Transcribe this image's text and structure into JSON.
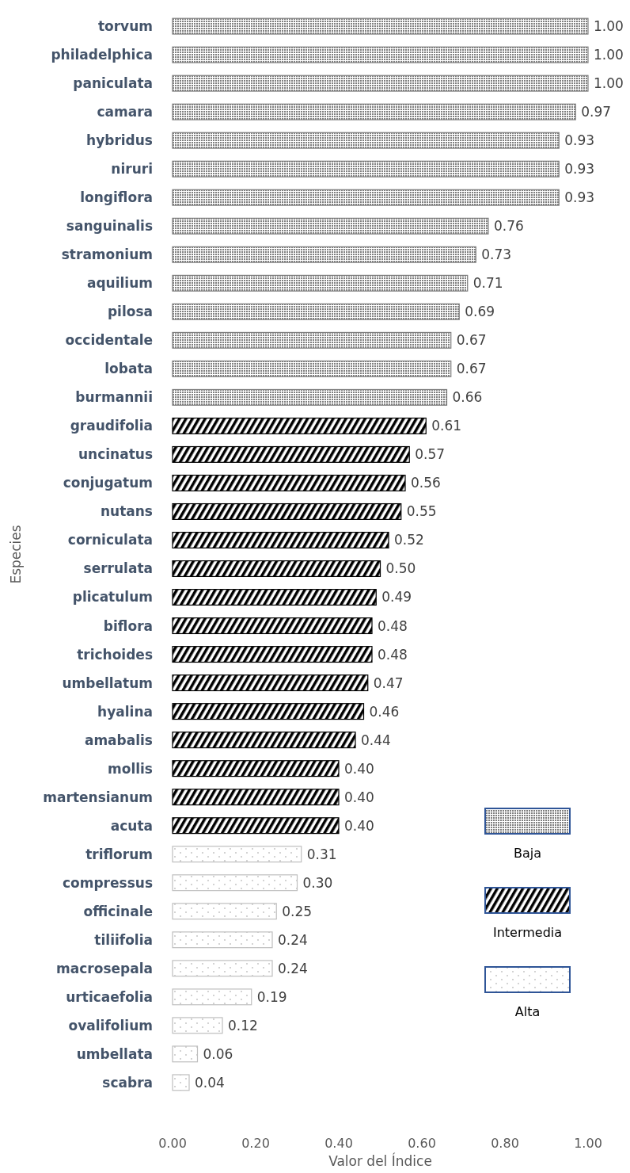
{
  "chart_data": {
    "type": "bar",
    "orientation": "horizontal",
    "xlabel": "Valor del Índice",
    "ylabel": "Especies",
    "categories": [
      "torvum",
      "philadelphica",
      "paniculata",
      "camara",
      "hybridus",
      "niruri",
      "longiflora",
      "sanguinalis",
      "stramonium",
      "aquilium",
      "pilosa",
      "occidentale",
      "lobata",
      "burmannii",
      "graudifolia",
      "uncinatus",
      "conjugatum",
      "nutans",
      "corniculata",
      "serrulata",
      "plicatulum",
      "biflora",
      "trichoides",
      "umbellatum",
      "hyalina",
      "amabalis",
      "mollis",
      "martensianum",
      "acuta",
      "triflorum",
      "compressus",
      "officinale",
      "tiliifolia",
      "macrosepala",
      "urticaefolia",
      "ovalifolium",
      "umbellata",
      "scabra"
    ],
    "series": [
      {
        "name": "Baja",
        "color": "#7f7f7f",
        "values": [
          1.0,
          1.0,
          1.0,
          0.97,
          0.93,
          0.93,
          0.93,
          0.76,
          0.73,
          0.71,
          0.69,
          0.67,
          0.67,
          0.66,
          null,
          null,
          null,
          null,
          null,
          null,
          null,
          null,
          null,
          null,
          null,
          null,
          null,
          null,
          null,
          null,
          null,
          null,
          null,
          null,
          null,
          null,
          null,
          null
        ],
        "value_labels": [
          "1.00",
          "1.00",
          "1.00",
          "0.97",
          "0.93",
          "0.93",
          "0.93",
          "0.76",
          "0.73",
          "0.71",
          "0.69",
          "0.67",
          "0.67",
          "0.66",
          null,
          null,
          null,
          null,
          null,
          null,
          null,
          null,
          null,
          null,
          null,
          null,
          null,
          null,
          null,
          null,
          null,
          null,
          null,
          null,
          null,
          null,
          null,
          null
        ]
      },
      {
        "name": "Intermedia",
        "color": "#000000",
        "values": [
          null,
          null,
          null,
          null,
          null,
          null,
          null,
          null,
          null,
          null,
          null,
          null,
          null,
          null,
          0.61,
          0.57,
          0.56,
          0.55,
          0.52,
          0.5,
          0.49,
          0.48,
          0.48,
          0.47,
          0.46,
          0.44,
          0.4,
          0.4,
          0.4,
          null,
          null,
          null,
          null,
          null,
          null,
          null,
          null,
          null
        ],
        "value_labels": [
          null,
          null,
          null,
          null,
          null,
          null,
          null,
          null,
          null,
          null,
          null,
          null,
          null,
          null,
          "0.61",
          "0.57",
          "0.56",
          "0.55",
          "0.52",
          "0.50",
          "0.49",
          "0.48",
          "0.48",
          "0.47",
          "0.46",
          "0.44",
          "0.40",
          "0.40",
          "0.40",
          null,
          null,
          null,
          null,
          null,
          null,
          null,
          null,
          null
        ]
      },
      {
        "name": "Alta",
        "color": "#bfbfbf",
        "values": [
          null,
          null,
          null,
          null,
          null,
          null,
          null,
          null,
          null,
          null,
          null,
          null,
          null,
          null,
          null,
          null,
          null,
          null,
          null,
          null,
          null,
          null,
          null,
          null,
          null,
          null,
          null,
          null,
          null,
          0.31,
          0.3,
          0.25,
          0.24,
          0.24,
          0.19,
          0.12,
          0.06,
          0.04
        ],
        "value_labels": [
          null,
          null,
          null,
          null,
          null,
          null,
          null,
          null,
          null,
          null,
          null,
          null,
          null,
          null,
          null,
          null,
          null,
          null,
          null,
          null,
          null,
          null,
          null,
          null,
          null,
          null,
          null,
          null,
          null,
          "0.31",
          "0.30",
          "0.25",
          "0.24",
          "0.24",
          "0.19",
          "0.12",
          "0.06",
          "0.04"
        ]
      }
    ],
    "xlim": [
      0,
      1
    ],
    "xticks": [
      {
        "value": 0,
        "label": "0.00"
      },
      {
        "value": 0.2,
        "label": "0.20"
      },
      {
        "value": 0.4,
        "label": "0.40"
      },
      {
        "value": 0.6,
        "label": "0.60"
      },
      {
        "value": 0.8,
        "label": "0.80"
      },
      {
        "value": 1,
        "label": "1.00"
      }
    ],
    "grid": false,
    "legend": "right"
  }
}
